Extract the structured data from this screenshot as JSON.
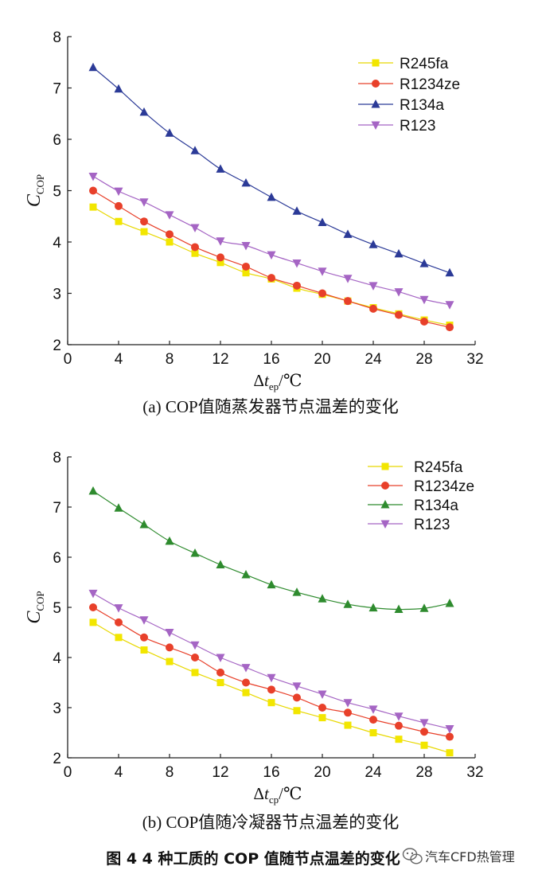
{
  "chart_data": [
    {
      "type": "line",
      "caption": "(a)  COP值随蒸发器节点温差的变化",
      "ylabel_main": "C",
      "ylabel_sub": "COP",
      "xlabel_delta": "Δ",
      "xlabel_var": "t",
      "xlabel_sub": "ep",
      "xlabel_unit": "/℃",
      "xlim": [
        0,
        32
      ],
      "ylim": [
        2,
        8
      ],
      "xticks": [
        "0",
        "4",
        "8",
        "12",
        "16",
        "20",
        "24",
        "28",
        "32"
      ],
      "yticks": [
        "2",
        "3",
        "4",
        "5",
        "6",
        "7",
        "8"
      ],
      "legend_position": "top-right",
      "x": [
        2,
        4,
        6,
        8,
        10,
        12,
        14,
        16,
        18,
        20,
        22,
        24,
        26,
        28,
        30
      ],
      "series": [
        {
          "name": "R245fa",
          "marker": "square",
          "color": "#f2e600",
          "line_color": "#e8d800",
          "values": [
            4.68,
            4.4,
            4.2,
            4.0,
            3.78,
            3.6,
            3.4,
            3.28,
            3.1,
            2.98,
            2.85,
            2.72,
            2.6,
            2.48,
            2.38
          ]
        },
        {
          "name": "R1234ze",
          "marker": "circle",
          "color": "#e8402a",
          "line_color": "#e8402a",
          "values": [
            5.0,
            4.7,
            4.4,
            4.15,
            3.9,
            3.7,
            3.52,
            3.3,
            3.15,
            3.0,
            2.85,
            2.7,
            2.58,
            2.45,
            2.34
          ]
        },
        {
          "name": "R134a",
          "marker": "triangle",
          "color": "#2b3a97",
          "line_color": "#2b3a97",
          "values": [
            7.4,
            6.98,
            6.53,
            6.12,
            5.78,
            5.42,
            5.15,
            4.87,
            4.6,
            4.38,
            4.15,
            3.95,
            3.77,
            3.58,
            3.4
          ]
        },
        {
          "name": "R123",
          "marker": "triangle-down",
          "color": "#a565c4",
          "line_color": "#a565c4",
          "values": [
            5.28,
            4.99,
            4.78,
            4.53,
            4.28,
            4.02,
            3.93,
            3.75,
            3.59,
            3.43,
            3.29,
            3.15,
            3.03,
            2.88,
            2.78
          ]
        }
      ]
    },
    {
      "type": "line",
      "caption": "(b)  COP值随冷凝器节点温差的变化",
      "ylabel_main": "C",
      "ylabel_sub": "COP",
      "xlabel_delta": "Δ",
      "xlabel_var": "t",
      "xlabel_sub": "cp",
      "xlabel_unit": "/℃",
      "xlim": [
        0,
        32
      ],
      "ylim": [
        2,
        8
      ],
      "xticks": [
        "0",
        "4",
        "8",
        "12",
        "16",
        "20",
        "24",
        "28",
        "32"
      ],
      "yticks": [
        "2",
        "3",
        "4",
        "5",
        "6",
        "7",
        "8"
      ],
      "legend_position": "top-right",
      "x": [
        2,
        4,
        6,
        8,
        10,
        12,
        14,
        16,
        18,
        20,
        22,
        24,
        26,
        28,
        30
      ],
      "series": [
        {
          "name": "R245fa",
          "marker": "square",
          "color": "#f2e600",
          "line_color": "#e8d800",
          "values": [
            4.7,
            4.4,
            4.15,
            3.92,
            3.7,
            3.5,
            3.3,
            3.1,
            2.94,
            2.8,
            2.65,
            2.5,
            2.37,
            2.25,
            2.1
          ]
        },
        {
          "name": "R1234ze",
          "marker": "circle",
          "color": "#e8402a",
          "line_color": "#e8402a",
          "values": [
            5.0,
            4.7,
            4.4,
            4.2,
            4.0,
            3.7,
            3.5,
            3.36,
            3.2,
            3.0,
            2.9,
            2.76,
            2.64,
            2.52,
            2.42
          ]
        },
        {
          "name": "R134a",
          "marker": "triangle",
          "color": "#2e8b2e",
          "line_color": "#2e8b2e",
          "values": [
            7.32,
            6.98,
            6.65,
            6.32,
            6.08,
            5.85,
            5.65,
            5.45,
            5.3,
            5.17,
            5.06,
            4.99,
            4.96,
            4.98,
            5.08
          ]
        },
        {
          "name": "R123",
          "marker": "triangle-down",
          "color": "#a565c4",
          "line_color": "#a565c4",
          "values": [
            5.28,
            4.99,
            4.75,
            4.5,
            4.25,
            4.0,
            3.8,
            3.6,
            3.43,
            3.27,
            3.1,
            2.97,
            2.83,
            2.7,
            2.58
          ]
        }
      ]
    }
  ],
  "figure_caption": "图 4   4 种工质的 COP 值随节点温差的变化",
  "watermark": "汽车CFD热管理",
  "watermark_icon": "wechat-icon"
}
